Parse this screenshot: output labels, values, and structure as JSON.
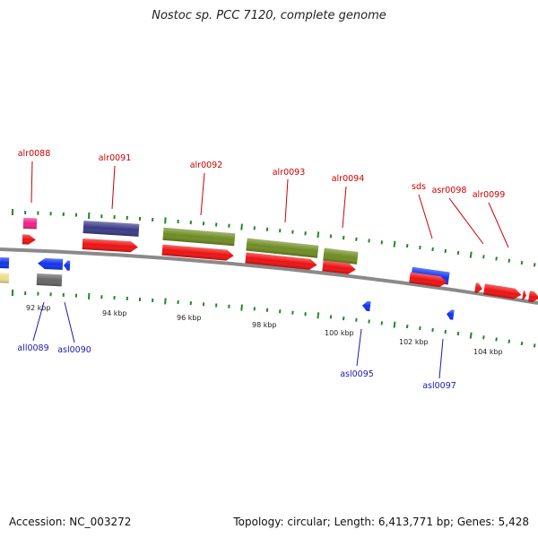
{
  "title": "Nostoc sp. PCC 7120, complete genome",
  "footer": {
    "accession": "Accession: NC_003272",
    "summary": "Topology: circular; Length: 6,413,771 bp; Genes: 5,428"
  },
  "colors": {
    "forward_label": "#cc0000",
    "reverse_label": "#1a1aaa",
    "cds_red": "#ee1111",
    "blue_gene": "#1133ee",
    "navy_gene": "#3a3a88",
    "olive_gene": "#6e8c22",
    "pink_gene": "#ee2288",
    "gray_gene": "#666666",
    "tick_green": "#228822",
    "backbone": "#888888"
  },
  "tick_labels": [
    "92 kbp",
    "94 kbp",
    "96 kbp",
    "98 kbp",
    "100 kbp",
    "102 kbp",
    "104 kbp"
  ],
  "genes_forward": [
    "alr0088",
    "alr0091",
    "alr0092",
    "alr0093",
    "alr0094",
    "sds",
    "asr0098",
    "alr0099"
  ],
  "genes_reverse": [
    "all0089",
    "asl0090",
    "asl0095",
    "asl0097"
  ]
}
